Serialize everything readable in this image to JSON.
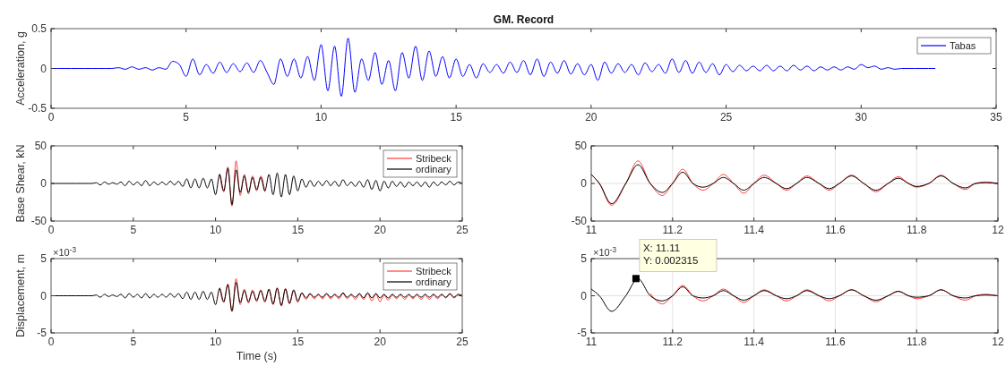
{
  "chart_data": [
    {
      "type": "line",
      "title": "GM. Record",
      "ylabel": "Acceleration, g",
      "xlim": [
        0,
        35
      ],
      "ylim": [
        -0.5,
        0.5
      ],
      "xticks": [
        0,
        5,
        10,
        15,
        20,
        25,
        30,
        35
      ],
      "yticks": [
        -0.5,
        0,
        0.5
      ],
      "grid": false,
      "legend": "top right",
      "series": [
        {
          "name": "Tabas",
          "color": "#0000ff",
          "x": [
            0,
            0.25,
            0.5,
            0.75,
            1,
            1.25,
            1.5,
            1.75,
            2,
            2.25,
            2.5,
            2.75,
            3,
            3.25,
            3.5,
            3.75,
            4,
            4.25,
            4.5,
            4.75,
            5,
            5.25,
            5.5,
            5.75,
            6,
            6.25,
            6.5,
            6.75,
            7,
            7.25,
            7.5,
            7.75,
            8,
            8.25,
            8.5,
            8.75,
            9,
            9.25,
            9.5,
            9.75,
            10,
            10.25,
            10.5,
            10.75,
            11,
            11.25,
            11.5,
            11.75,
            12,
            12.25,
            12.5,
            12.75,
            13,
            13.25,
            13.5,
            13.75,
            14,
            14.25,
            14.5,
            14.75,
            15,
            15.25,
            15.5,
            15.75,
            16,
            16.25,
            16.5,
            16.75,
            17,
            17.25,
            17.5,
            17.75,
            18,
            18.25,
            18.5,
            18.75,
            19,
            19.25,
            19.5,
            19.75,
            20,
            20.25,
            20.5,
            20.75,
            21,
            21.25,
            21.5,
            21.75,
            22,
            22.25,
            22.5,
            22.75,
            23,
            23.25,
            23.5,
            23.75,
            24,
            24.25,
            24.5,
            24.75,
            25,
            25.25,
            25.5,
            25.75,
            26,
            26.25,
            26.5,
            26.75,
            27,
            27.25,
            27.5,
            27.75,
            28,
            28.25,
            28.5,
            28.75,
            29,
            29.25,
            29.5,
            29.75,
            30,
            30.25,
            30.5,
            30.75,
            31,
            31.25,
            31.5,
            31.75,
            32,
            32.25,
            32.5,
            32.75
          ],
          "values": [
            0,
            0,
            0,
            0,
            0,
            0,
            0,
            0,
            0,
            0,
            0.01,
            -0.01,
            0.02,
            -0.01,
            0.01,
            -0.02,
            0.01,
            -0.01,
            0.09,
            0.05,
            -0.1,
            0.12,
            -0.08,
            0.05,
            -0.06,
            0.08,
            -0.05,
            0.06,
            -0.04,
            0.07,
            -0.05,
            0.1,
            -0.05,
            -0.2,
            0.12,
            -0.1,
            0.12,
            -0.12,
            0.15,
            -0.15,
            0.3,
            -0.28,
            0.28,
            -0.35,
            0.38,
            -0.3,
            0.12,
            -0.15,
            0.2,
            -0.2,
            0.1,
            -0.28,
            0.2,
            -0.12,
            0.28,
            -0.15,
            0.22,
            -0.1,
            0.15,
            -0.12,
            0.12,
            -0.1,
            0.05,
            -0.12,
            0.06,
            -0.05,
            0.05,
            -0.06,
            0.08,
            -0.05,
            0.1,
            -0.08,
            0.12,
            -0.1,
            0.08,
            -0.06,
            0.1,
            -0.07,
            0.06,
            -0.08,
            0.05,
            -0.15,
            0.08,
            -0.06,
            0.06,
            -0.05,
            0.05,
            -0.08,
            0.07,
            -0.04,
            0.05,
            -0.06,
            0.12,
            -0.05,
            0.1,
            -0.06,
            0.08,
            -0.05,
            0.06,
            -0.08,
            0.05,
            -0.04,
            0.04,
            -0.03,
            0.03,
            -0.03,
            0.04,
            -0.03,
            0.03,
            -0.03,
            0.04,
            -0.02,
            0.03,
            -0.03,
            0.02,
            -0.02,
            0.02,
            -0.02,
            0.02,
            -0.01,
            0.05,
            0.01,
            0.03,
            -0.01,
            0.01,
            -0.01,
            0,
            0,
            0,
            0,
            0,
            0
          ]
        }
      ]
    },
    {
      "type": "line",
      "ylabel": "Base Shear, kN",
      "xlim": [
        0,
        25
      ],
      "ylim": [
        -50,
        50
      ],
      "xticks": [
        0,
        5,
        10,
        15,
        20,
        25
      ],
      "yticks": [
        -50,
        0,
        50
      ],
      "grid": false,
      "legend": "top right",
      "series": [
        {
          "name": "Stribeck",
          "color": "#ff3b3b",
          "x": [
            10.25,
            10.5,
            10.75,
            11,
            11.25,
            11.5,
            11.75,
            12,
            12.25,
            12.5,
            12.75,
            13
          ],
          "values": [
            13,
            -11,
            22,
            -30,
            30,
            -16,
            12,
            -14,
            10,
            -10,
            10,
            -11
          ]
        },
        {
          "name": "ordinary",
          "color": "#000000",
          "x": [
            0,
            0.25,
            0.5,
            0.75,
            1,
            1.25,
            1.5,
            1.75,
            2,
            2.25,
            2.5,
            2.75,
            3,
            3.25,
            3.5,
            3.75,
            4,
            4.25,
            4.5,
            4.75,
            5,
            5.25,
            5.5,
            5.75,
            6,
            6.25,
            6.5,
            6.75,
            7,
            7.25,
            7.5,
            7.75,
            8,
            8.25,
            8.5,
            8.75,
            9,
            9.25,
            9.5,
            9.75,
            10,
            10.25,
            10.5,
            10.75,
            11,
            11.25,
            11.5,
            11.75,
            12,
            12.25,
            12.5,
            12.75,
            13,
            13.25,
            13.5,
            13.75,
            14,
            14.25,
            14.5,
            14.75,
            15,
            15.25,
            15.5,
            15.75,
            16,
            16.25,
            16.5,
            16.75,
            17,
            17.25,
            17.5,
            17.75,
            18,
            18.25,
            18.5,
            18.75,
            19,
            19.25,
            19.5,
            19.75,
            20,
            20.25,
            20.5,
            20.75,
            21,
            21.25,
            21.5,
            21.75,
            22,
            22.25,
            22.5,
            22.75,
            23,
            23.25,
            23.5,
            23.75,
            24,
            24.25,
            24.5,
            24.75,
            25
          ],
          "values": [
            0,
            0,
            0,
            0,
            0,
            0,
            0,
            0,
            0,
            0,
            0,
            1,
            -2,
            2,
            -1,
            1,
            -1,
            2,
            -3,
            3,
            -2,
            2,
            -3,
            4,
            -3,
            2,
            -2,
            2,
            -2,
            3,
            -2,
            3,
            -4,
            6,
            -6,
            6,
            -6,
            7,
            -6,
            6,
            -15,
            12,
            -10,
            20,
            -28,
            18,
            -12,
            10,
            -12,
            8,
            -8,
            8,
            -10,
            12,
            -15,
            14,
            -18,
            12,
            -15,
            10,
            -10,
            6,
            -5,
            4,
            -4,
            3,
            -3,
            4,
            -3,
            3,
            -4,
            5,
            -3,
            2,
            -4,
            3,
            -5,
            5,
            -8,
            4,
            -10,
            3,
            -6,
            3,
            -4,
            2,
            -5,
            2,
            -3,
            2,
            -4,
            2,
            -5,
            2,
            -3,
            2,
            -2,
            3,
            -2,
            2,
            0
          ]
        }
      ]
    },
    {
      "type": "line",
      "xlim": [
        11,
        12
      ],
      "ylim": [
        -50,
        50
      ],
      "xticks": [
        11,
        11.2,
        11.4,
        11.6,
        11.8,
        12
      ],
      "yticks": [
        -50,
        0,
        50
      ],
      "grid": true,
      "legend": false,
      "series": [
        {
          "color": "#ff3b3b",
          "x": [
            11,
            11.02,
            11.05,
            11.085,
            11.115,
            11.145,
            11.175,
            11.2,
            11.225,
            11.25,
            11.275,
            11.3,
            11.325,
            11.35,
            11.375,
            11.4,
            11.425,
            11.455,
            11.48,
            11.505,
            11.53,
            11.56,
            11.585,
            11.61,
            11.64,
            11.67,
            11.7,
            11.73,
            11.755,
            11.78,
            11.8,
            11.83,
            11.86,
            11.89,
            11.92,
            11.945,
            11.97,
            12
          ],
          "values": [
            12,
            0,
            -29,
            0,
            30,
            0,
            -16,
            0,
            19,
            0,
            -9,
            0,
            12,
            0,
            -13,
            0,
            11,
            0,
            -9,
            0,
            10,
            0,
            -9,
            0,
            11,
            0,
            -11,
            0,
            9,
            0,
            -5,
            0,
            11,
            0,
            -8,
            0,
            2,
            0
          ]
        },
        {
          "color": "#000000",
          "x": [
            11,
            11.02,
            11.05,
            11.085,
            11.115,
            11.145,
            11.175,
            11.2,
            11.225,
            11.25,
            11.275,
            11.3,
            11.325,
            11.35,
            11.375,
            11.4,
            11.425,
            11.455,
            11.48,
            11.505,
            11.53,
            11.56,
            11.585,
            11.61,
            11.64,
            11.67,
            11.7,
            11.73,
            11.755,
            11.78,
            11.8,
            11.83,
            11.86,
            11.89,
            11.92,
            11.945,
            11.97,
            12
          ],
          "values": [
            12,
            0,
            -27,
            0,
            25,
            0,
            -12,
            0,
            15,
            0,
            -5,
            0,
            8,
            0,
            -9,
            0,
            8,
            0,
            -7,
            0,
            8,
            0,
            -7,
            0,
            10,
            0,
            -9,
            0,
            7,
            0,
            -4,
            0,
            10,
            0,
            -6,
            0,
            1,
            0
          ]
        }
      ]
    },
    {
      "type": "line",
      "ylabel": "Displacement, m",
      "xlabel": "Time (s)",
      "xlim": [
        0,
        25
      ],
      "ylim": [
        -5,
        5
      ],
      "xticks": [
        0,
        5,
        10,
        15,
        20,
        25
      ],
      "yticks": [
        -5,
        0,
        5
      ],
      "grid": false,
      "legend": "top right",
      "annotations": [
        "×10$^{-3}$"
      ],
      "series": [
        {
          "name": "Stribeck",
          "color": "#ff3b3b",
          "x": [
            10.25,
            10.5,
            10.75,
            11,
            11.25,
            11.5,
            11.75,
            12,
            12.25,
            12.5,
            12.75,
            13,
            13.25,
            13.5,
            13.75,
            14,
            14.25,
            14.5,
            14.75,
            15,
            15.25,
            15.5,
            15.75,
            16,
            16.25,
            16.5,
            16.75,
            17,
            17.25,
            17.5,
            17.75,
            18,
            18.25,
            18.5,
            18.75,
            19,
            19.25,
            19.5,
            19.75,
            20,
            20.25,
            20.5,
            20.75,
            21,
            21.25,
            21.5,
            21.75,
            22,
            22.25,
            22.5,
            22.75,
            23,
            23.25,
            23.5,
            23.75,
            24,
            24.25,
            24.5,
            24.75,
            25
          ],
          "values": [
            1.1,
            -0.9,
            1.6,
            -2,
            2.3,
            -1.2,
            0.9,
            -1,
            0.8,
            -0.8,
            0.8,
            -0.9,
            0.8,
            -1.2,
            1.1,
            -1.4,
            1,
            -1.1,
            0.7,
            -0.9,
            0.3,
            -0.5,
            0.2,
            -0.4,
            0.1,
            -0.4,
            0.2,
            -0.4,
            0.1,
            -0.4,
            0.3,
            -0.4,
            0.1,
            -0.5,
            0.2,
            -0.5,
            0.3,
            -0.7,
            0.2,
            -0.8,
            0.1,
            -0.6,
            0.1,
            -0.4,
            0.1,
            -0.5,
            0.1,
            -0.4,
            0.1,
            -0.5,
            0.1,
            -0.5,
            0.1,
            -0.4,
            0.1,
            -0.3,
            0.2,
            -0.3,
            0.1,
            -0.1
          ]
        },
        {
          "name": "ordinary",
          "color": "#000000",
          "x": [
            0,
            0.25,
            0.5,
            0.75,
            1,
            1.25,
            1.5,
            1.75,
            2,
            2.25,
            2.5,
            2.75,
            3,
            3.25,
            3.5,
            3.75,
            4,
            4.25,
            4.5,
            4.75,
            5,
            5.25,
            5.5,
            5.75,
            6,
            6.25,
            6.5,
            6.75,
            7,
            7.25,
            7.5,
            7.75,
            8,
            8.25,
            8.5,
            8.75,
            9,
            9.25,
            9.5,
            9.75,
            10,
            10.25,
            10.5,
            10.75,
            11,
            11.25,
            11.5,
            11.75,
            12,
            12.25,
            12.5,
            12.75,
            13,
            13.25,
            13.5,
            13.75,
            14,
            14.25,
            14.5,
            14.75,
            15,
            15.25,
            15.5,
            15.75,
            16,
            16.25,
            16.5,
            16.75,
            17,
            17.25,
            17.5,
            17.75,
            18,
            18.25,
            18.5,
            18.75,
            19,
            19.25,
            19.5,
            19.75,
            20,
            20.25,
            20.5,
            20.75,
            21,
            21.25,
            21.5,
            21.75,
            22,
            22.25,
            22.5,
            22.75,
            23,
            23.25,
            23.5,
            23.75,
            24,
            24.25,
            24.5,
            24.75,
            25
          ],
          "values": [
            0,
            0,
            0,
            0,
            0,
            0,
            0,
            0,
            0,
            0,
            0,
            0.1,
            -0.2,
            0.2,
            -0.1,
            0.1,
            -0.1,
            0.2,
            -0.3,
            0.3,
            -0.2,
            0.2,
            -0.3,
            0.3,
            -0.3,
            0.2,
            -0.2,
            0.2,
            -0.2,
            0.3,
            -0.2,
            0.3,
            -0.4,
            0.5,
            -0.5,
            0.5,
            -0.5,
            0.6,
            -0.5,
            0.5,
            -1.2,
            1,
            -0.8,
            1.5,
            -2.1,
            1.8,
            -0.9,
            0.7,
            -0.8,
            0.6,
            -0.6,
            0.7,
            -0.7,
            0.9,
            -1.1,
            1,
            -1.3,
            0.9,
            -1,
            0.8,
            -0.7,
            0.4,
            -0.3,
            0.3,
            -0.2,
            0.2,
            -0.2,
            0.3,
            -0.2,
            0.2,
            -0.2,
            0.4,
            -0.2,
            0.2,
            -0.2,
            0.3,
            -0.3,
            0.4,
            -0.3,
            0.3,
            -0.3,
            0.2,
            -0.3,
            0.2,
            -0.2,
            0.2,
            -0.2,
            0.2,
            -0.2,
            0.2,
            -0.2,
            0.2,
            -0.2,
            0.2,
            -0.2,
            0.2,
            -0.2,
            0.3,
            -0.2,
            0.2,
            0
          ]
        }
      ]
    },
    {
      "type": "line",
      "xlim": [
        11,
        12
      ],
      "ylim": [
        -5,
        5
      ],
      "xticks": [
        11,
        11.2,
        11.4,
        11.6,
        11.8,
        12
      ],
      "yticks": [
        -5,
        0,
        5
      ],
      "grid": true,
      "legend": false,
      "annotations": [
        "×10$^{-3}$",
        {
          "text": "X: 11.11\nY: 0.002315",
          "x": 11.11,
          "y": 2.315
        }
      ],
      "series": [
        {
          "color": "#ff3b3b",
          "x": [
            11.145,
            11.175,
            11.2,
            11.225,
            11.25,
            11.275,
            11.3,
            11.325,
            11.35,
            11.375,
            11.4,
            11.425,
            11.455,
            11.48,
            11.505,
            11.53,
            11.56,
            11.585,
            11.61,
            11.64,
            11.67,
            11.7,
            11.73,
            11.755,
            11.78,
            11.8,
            11.83,
            11.86,
            11.89,
            11.92,
            11.945,
            11.97,
            12
          ],
          "values": [
            0.3,
            -1.1,
            0,
            1.4,
            0,
            -0.7,
            0,
            0.9,
            0,
            -0.9,
            0,
            0.8,
            0,
            -0.7,
            0,
            0.8,
            0,
            -0.7,
            0,
            0.8,
            0,
            -0.8,
            0,
            0.6,
            0,
            -0.4,
            0,
            0.8,
            0,
            -0.6,
            0,
            0.2,
            0
          ]
        },
        {
          "color": "#000000",
          "x": [
            11,
            11.02,
            11.05,
            11.085,
            11.115,
            11.145,
            11.175,
            11.2,
            11.225,
            11.25,
            11.275,
            11.3,
            11.325,
            11.35,
            11.375,
            11.4,
            11.425,
            11.455,
            11.48,
            11.505,
            11.53,
            11.56,
            11.585,
            11.61,
            11.64,
            11.67,
            11.7,
            11.73,
            11.755,
            11.78,
            11.8,
            11.83,
            11.86,
            11.89,
            11.92,
            11.945,
            11.97,
            12
          ],
          "values": [
            0.9,
            0,
            -2.1,
            0,
            2.3,
            0,
            -0.7,
            0,
            1.2,
            0,
            -0.3,
            0,
            0.7,
            0,
            -0.6,
            0,
            0.7,
            0,
            -0.4,
            0,
            0.7,
            0,
            -0.4,
            0,
            0.8,
            0,
            -0.6,
            0,
            0.6,
            0,
            -0.2,
            0,
            0.8,
            0,
            -0.3,
            0,
            0.1,
            0
          ]
        }
      ]
    }
  ]
}
